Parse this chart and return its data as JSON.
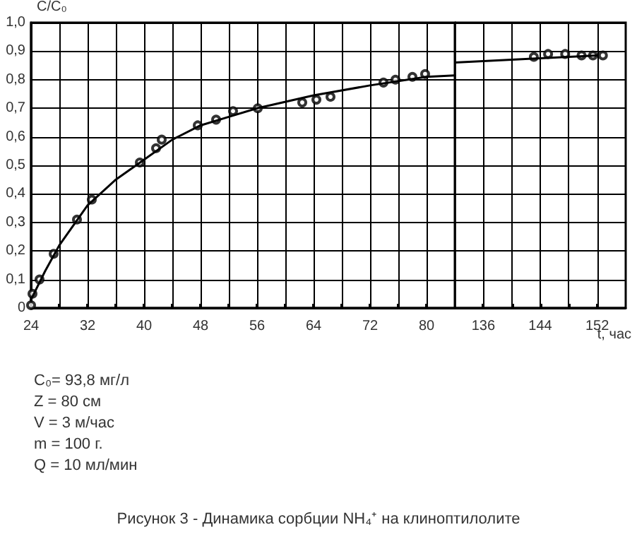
{
  "chart_data": [
    {
      "type": "scatter",
      "ylabel": "С/С₀",
      "xlim": [
        24,
        84
      ],
      "ylim": [
        0,
        1
      ],
      "xticks": [
        24,
        {
          "value": 28,
          "label": null
        },
        32,
        {
          "value": 36,
          "label": null
        },
        40,
        {
          "value": 44,
          "label": null
        },
        48,
        {
          "value": 52,
          "label": null
        },
        56,
        {
          "value": 60,
          "label": null
        },
        64,
        {
          "value": 68,
          "label": null
        },
        72,
        {
          "value": 76,
          "label": null
        },
        80
      ],
      "yticks": [
        0,
        {
          "value": 0.1,
          "label": "0,1"
        },
        {
          "value": 0.2,
          "label": "0,2"
        },
        {
          "value": 0.3,
          "label": "0,3"
        },
        {
          "value": 0.4,
          "label": "0,4"
        },
        {
          "value": 0.5,
          "label": "0,5"
        },
        {
          "value": 0.6,
          "label": "0,6"
        },
        {
          "value": 0.7,
          "label": "0,7"
        },
        {
          "value": 0.8,
          "label": "0,8"
        },
        {
          "value": 0.9,
          "label": "0,9"
        },
        {
          "value": 1.0,
          "label": "1,0"
        }
      ],
      "grid": true,
      "series": [
        {
          "marker": "circle",
          "color": "#000000",
          "x": [
            24,
            24.2,
            25.2,
            27.2,
            30.5,
            32.6,
            39.4,
            41.7,
            42.5,
            47.6,
            50.2,
            52.6,
            56.1,
            62.4,
            64.4,
            66.4,
            73.9,
            75.6,
            78,
            79.8
          ],
          "values": [
            0.01,
            0.05,
            0.1,
            0.19,
            0.31,
            0.38,
            0.51,
            0.56,
            0.59,
            0.64,
            0.66,
            0.69,
            0.7,
            0.72,
            0.73,
            0.74,
            0.79,
            0.8,
            0.81,
            0.82
          ]
        },
        {
          "type": "line",
          "marker": "none",
          "color": "#000000",
          "x": [
            24,
            26,
            28,
            30,
            32,
            36,
            40,
            44,
            48,
            52,
            56,
            64,
            72,
            80,
            84
          ],
          "values": [
            0.03,
            0.13,
            0.22,
            0.29,
            0.36,
            0.45,
            0.52,
            0.59,
            0.64,
            0.67,
            0.7,
            0.745,
            0.78,
            0.81,
            0.815
          ]
        }
      ],
      "annotations": [
        "С₀= 93,8 мг/л",
        "Z = 80 см",
        "V = 3 м/час",
        "m = 100 г.",
        "Q = 10 мл/мин",
        "Рисунок 3 - Динамика сорбции NH₄⁺ на клиноптилолите"
      ]
    },
    {
      "type": "scatter",
      "xlabel": "t, час",
      "xlim": [
        132,
        156
      ],
      "ylim": [
        0,
        1
      ],
      "xticks": [
        136,
        {
          "value": 140,
          "label": null
        },
        144,
        {
          "value": 148,
          "label": null
        },
        152
      ],
      "yticks": [
        0,
        0.1,
        0.2,
        0.3,
        0.4,
        0.5,
        0.6,
        0.7,
        0.8,
        0.9,
        1.0
      ],
      "tick_labels": "x",
      "grid": true,
      "series": [
        {
          "marker": "circle",
          "color": "#000000",
          "x": [
            143.1,
            145.1,
            147.5,
            149.8,
            151.4,
            152.8
          ],
          "values": [
            0.88,
            0.89,
            0.89,
            0.885,
            0.885,
            0.885
          ]
        },
        {
          "type": "line",
          "marker": "none",
          "color": "#000000",
          "x": [
            132,
            136,
            144,
            152
          ],
          "values": [
            0.86,
            0.865,
            0.875,
            0.885
          ]
        }
      ]
    }
  ]
}
